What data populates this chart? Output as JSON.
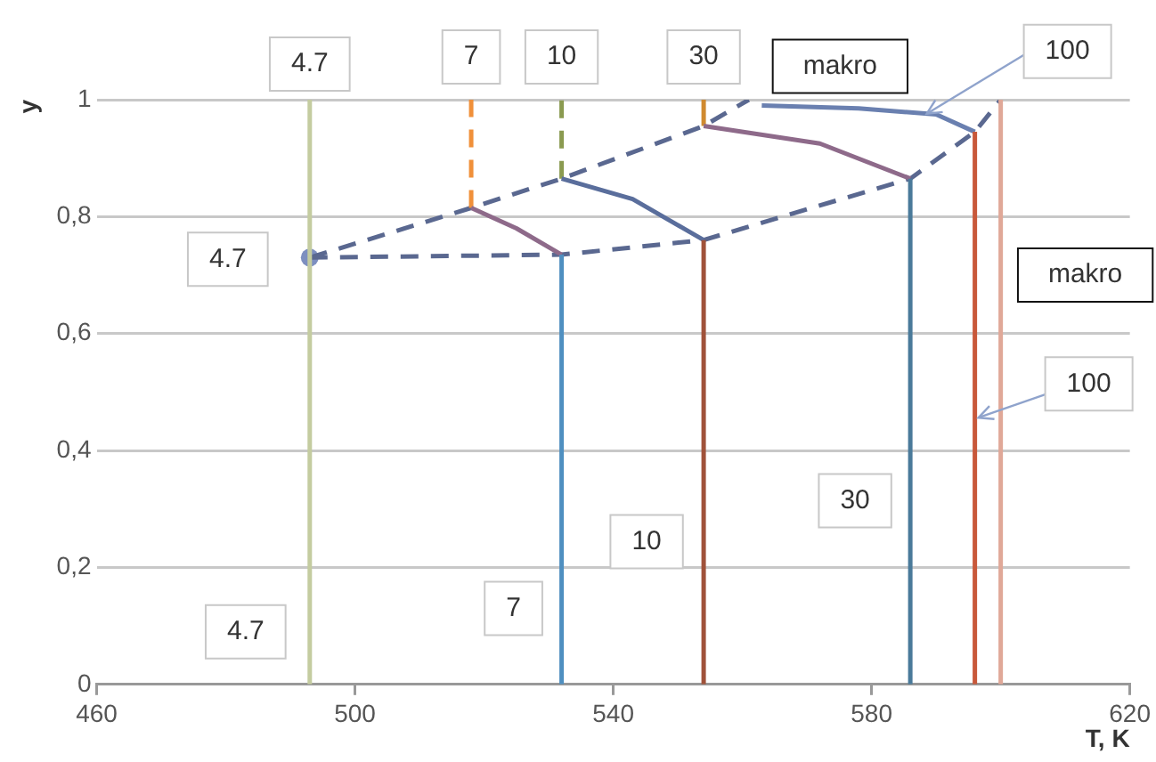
{
  "chart_data": {
    "type": "line",
    "xlabel": "T, K",
    "ylabel": "y",
    "xlim": [
      460,
      620
    ],
    "xticks": [
      460,
      500,
      540,
      580,
      620
    ],
    "ylim": [
      0,
      1
    ],
    "yticks": [
      0,
      {
        "value": 0.2,
        "label": "0,2"
      },
      {
        "value": 0.4,
        "label": "0,4"
      },
      {
        "value": 0.6,
        "label": "0,6"
      },
      {
        "value": 0.8,
        "label": "0,8"
      },
      1
    ],
    "grid": "y",
    "marker": "none",
    "line_style": "solid",
    "series": [
      {
        "color": "#c4cca0",
        "x": [
          493,
          493
        ],
        "values": [
          0,
          1
        ]
      },
      {
        "color": "#4f8fc0",
        "x": [
          532,
          532
        ],
        "values": [
          0,
          0.735
        ]
      },
      {
        "color": "#8e6a8a",
        "x": [
          532,
          525,
          518
        ],
        "values": [
          0.735,
          0.78,
          0.815
        ]
      },
      {
        "color": "#f0903a",
        "x": [
          518,
          518
        ],
        "values": [
          0.815,
          1
        ],
        "line_style": "dashed"
      },
      {
        "color": "#a0523a",
        "x": [
          554,
          554
        ],
        "values": [
          0,
          0.76
        ]
      },
      {
        "color": "#5a6e9c",
        "x": [
          554,
          543,
          532
        ],
        "values": [
          0.76,
          0.83,
          0.865
        ]
      },
      {
        "color": "#8a9a50",
        "x": [
          532,
          532
        ],
        "values": [
          0.865,
          1
        ],
        "line_style": "dashed"
      },
      {
        "color": "#4a7a9a",
        "x": [
          586,
          586
        ],
        "values": [
          0,
          0.865
        ]
      },
      {
        "color": "#8e6a8a",
        "x": [
          586,
          572,
          554
        ],
        "values": [
          0.865,
          0.925,
          0.955
        ]
      },
      {
        "color": "#d08a30",
        "x": [
          554,
          554
        ],
        "values": [
          0.955,
          1
        ]
      },
      {
        "color": "#c8583a",
        "x": [
          596,
          596
        ],
        "values": [
          0,
          0.945
        ]
      },
      {
        "color": "#6a80b0",
        "x": [
          596,
          590,
          578,
          563
        ],
        "values": [
          0.945,
          0.975,
          0.985,
          0.99
        ]
      },
      {
        "color": "#e0a898",
        "x": [
          600,
          600
        ],
        "values": [
          0,
          1
        ]
      },
      {
        "color": "#5a6890",
        "x": [
          493,
          532,
          554,
          586,
          596,
          600
        ],
        "values": [
          0.73,
          0.735,
          0.76,
          0.865,
          0.945,
          1
        ],
        "line_style": "dashed"
      },
      {
        "color": "#5a6890",
        "x": [
          493,
          518,
          532,
          554,
          561
        ],
        "values": [
          0.73,
          0.815,
          0.865,
          0.955,
          1
        ],
        "line_style": "dashed"
      },
      {
        "type": "scatter",
        "color": "#7d8fc0",
        "x": [
          493
        ],
        "values": [
          0.73
        ],
        "marker": "circle"
      }
    ],
    "annotations": [
      {
        "text": "4.7",
        "x": 493,
        "y": 1
      },
      {
        "text": "7",
        "x": 518,
        "y": 1
      },
      {
        "text": "10",
        "x": 532,
        "y": 1
      },
      {
        "text": "30",
        "x": 554,
        "y": 1
      },
      {
        "text": "makro",
        "x": 563,
        "y": 0.99
      },
      {
        "text": "100",
        "x": 588,
        "y": 0.97
      },
      {
        "text": "4.7",
        "x": 493,
        "y": 0.73
      },
      {
        "text": "makro",
        "x": 596,
        "y": 0.7
      },
      {
        "text": "100",
        "x": 596,
        "y": 0.45
      },
      {
        "text": "30",
        "x": 586,
        "y": 0.32
      },
      {
        "text": "10",
        "x": 554,
        "y": 0.25
      },
      {
        "text": "7",
        "x": 532,
        "y": 0.13
      },
      {
        "text": "4.7",
        "x": 493,
        "y": 0.09
      }
    ]
  }
}
